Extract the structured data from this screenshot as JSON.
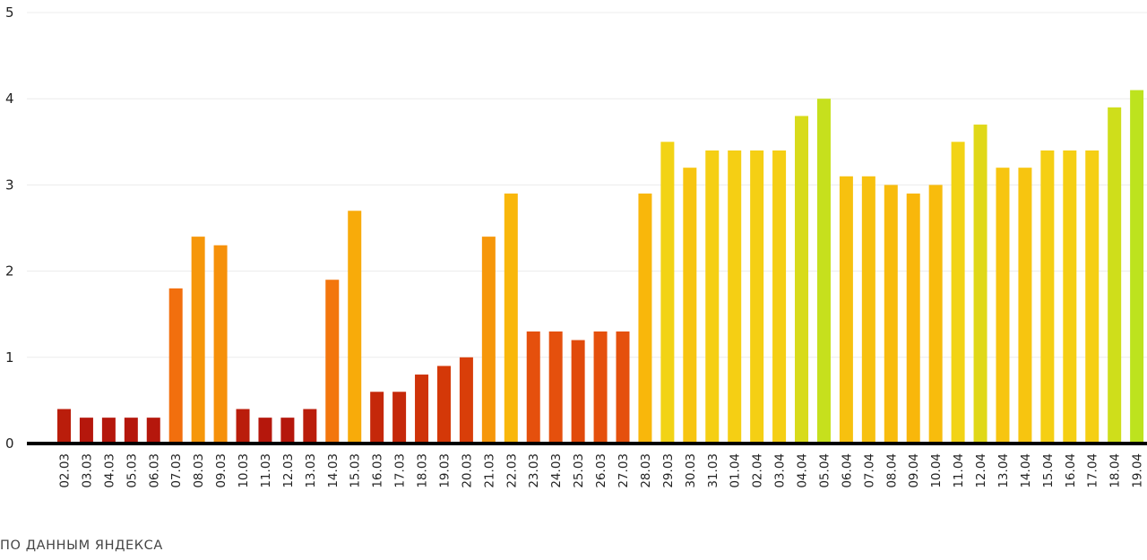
{
  "source_note": "ПО ДАННЫМ ЯНДЕКСА",
  "chart_data": {
    "type": "bar",
    "title": "",
    "xlabel": "",
    "ylabel": "",
    "ylim": [
      0,
      5
    ],
    "y_ticks": [
      0,
      1,
      2,
      3,
      4,
      5
    ],
    "grid": true,
    "legend": "none",
    "categories": [
      "02.03",
      "03.03",
      "04.03",
      "05.03",
      "06.03",
      "07.03",
      "08.03",
      "09.03",
      "10.03",
      "11.03",
      "12.03",
      "13.03",
      "14.03",
      "15.03",
      "16.03",
      "17.03",
      "18.03",
      "19.03",
      "20.03",
      "21.03",
      "22.03",
      "23.03",
      "24.03",
      "25.03",
      "26.03",
      "27.03",
      "28.03",
      "29.03",
      "30.03",
      "31.03",
      "01.04",
      "02.04",
      "03.04",
      "04.04",
      "05.04",
      "06.04",
      "07.04",
      "08.04",
      "09.04",
      "10.04",
      "11.04",
      "12.04",
      "13.04",
      "14.04",
      "15.04",
      "16.04",
      "17.04",
      "18.04",
      "19.04"
    ],
    "values": [
      0.4,
      0.3,
      0.3,
      0.3,
      0.3,
      1.8,
      2.4,
      2.3,
      0.4,
      0.3,
      0.3,
      0.4,
      1.9,
      2.7,
      0.6,
      0.6,
      0.8,
      0.9,
      1.0,
      2.4,
      2.9,
      1.3,
      1.3,
      1.2,
      1.3,
      1.3,
      2.9,
      3.5,
      3.2,
      3.4,
      3.4,
      3.4,
      3.4,
      3.8,
      4.0,
      3.1,
      3.1,
      3.0,
      2.9,
      3.0,
      3.5,
      3.7,
      3.2,
      3.2,
      3.4,
      3.4,
      3.4,
      3.9,
      4.1
    ],
    "color_scale": [
      "#b5170c",
      "#d63a08",
      "#f06010",
      "#f58a0a",
      "#f9b40a",
      "#f5d215",
      "#bde31e"
    ]
  }
}
